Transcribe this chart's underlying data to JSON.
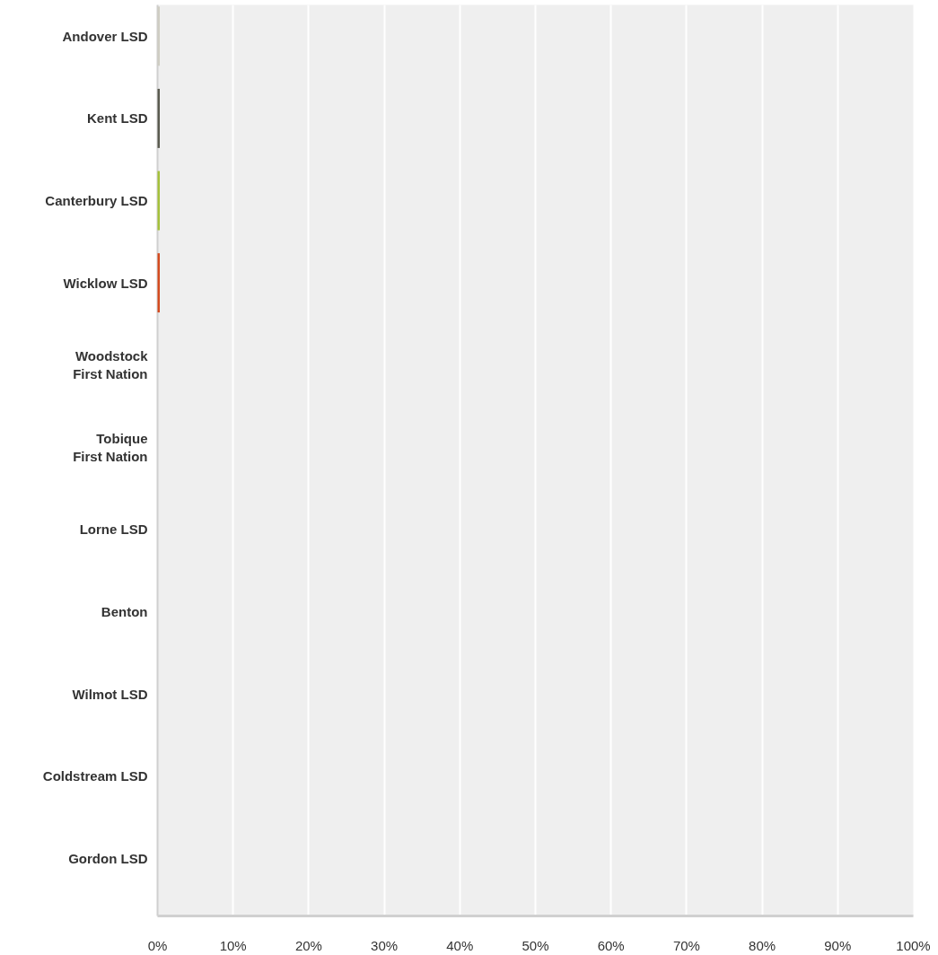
{
  "chart_data": {
    "type": "bar",
    "orientation": "horizontal",
    "categories": [
      "Andover LSD",
      "Kent LSD",
      "Canterbury LSD",
      "Wicklow LSD",
      "Woodstock First Nation",
      "Tobique First Nation",
      "Lorne LSD",
      "Benton",
      "Wilmot LSD",
      "Coldstream LSD",
      "Gordon LSD"
    ],
    "values": [
      0.3,
      0.3,
      0.3,
      0.3,
      0,
      0,
      0,
      0,
      0,
      0,
      0
    ],
    "colors": [
      "#cfcdc3",
      "#5a5b4f",
      "#a5c13a",
      "#d44a1e",
      "#cccccc",
      "#cccccc",
      "#cccccc",
      "#cccccc",
      "#cccccc",
      "#cccccc",
      "#cccccc"
    ],
    "xlim": [
      0,
      100
    ],
    "xticks": [
      {
        "value": 0,
        "label": "0%"
      },
      {
        "value": 10,
        "label": "10%"
      },
      {
        "value": 20,
        "label": "20%"
      },
      {
        "value": 30,
        "label": "30%"
      },
      {
        "value": 40,
        "label": "40%"
      },
      {
        "value": 50,
        "label": "50%"
      },
      {
        "value": 60,
        "label": "60%"
      },
      {
        "value": 70,
        "label": "70%"
      },
      {
        "value": 80,
        "label": "80%"
      },
      {
        "value": 90,
        "label": "90%"
      },
      {
        "value": 100,
        "label": "100%"
      }
    ],
    "grid": "x"
  }
}
